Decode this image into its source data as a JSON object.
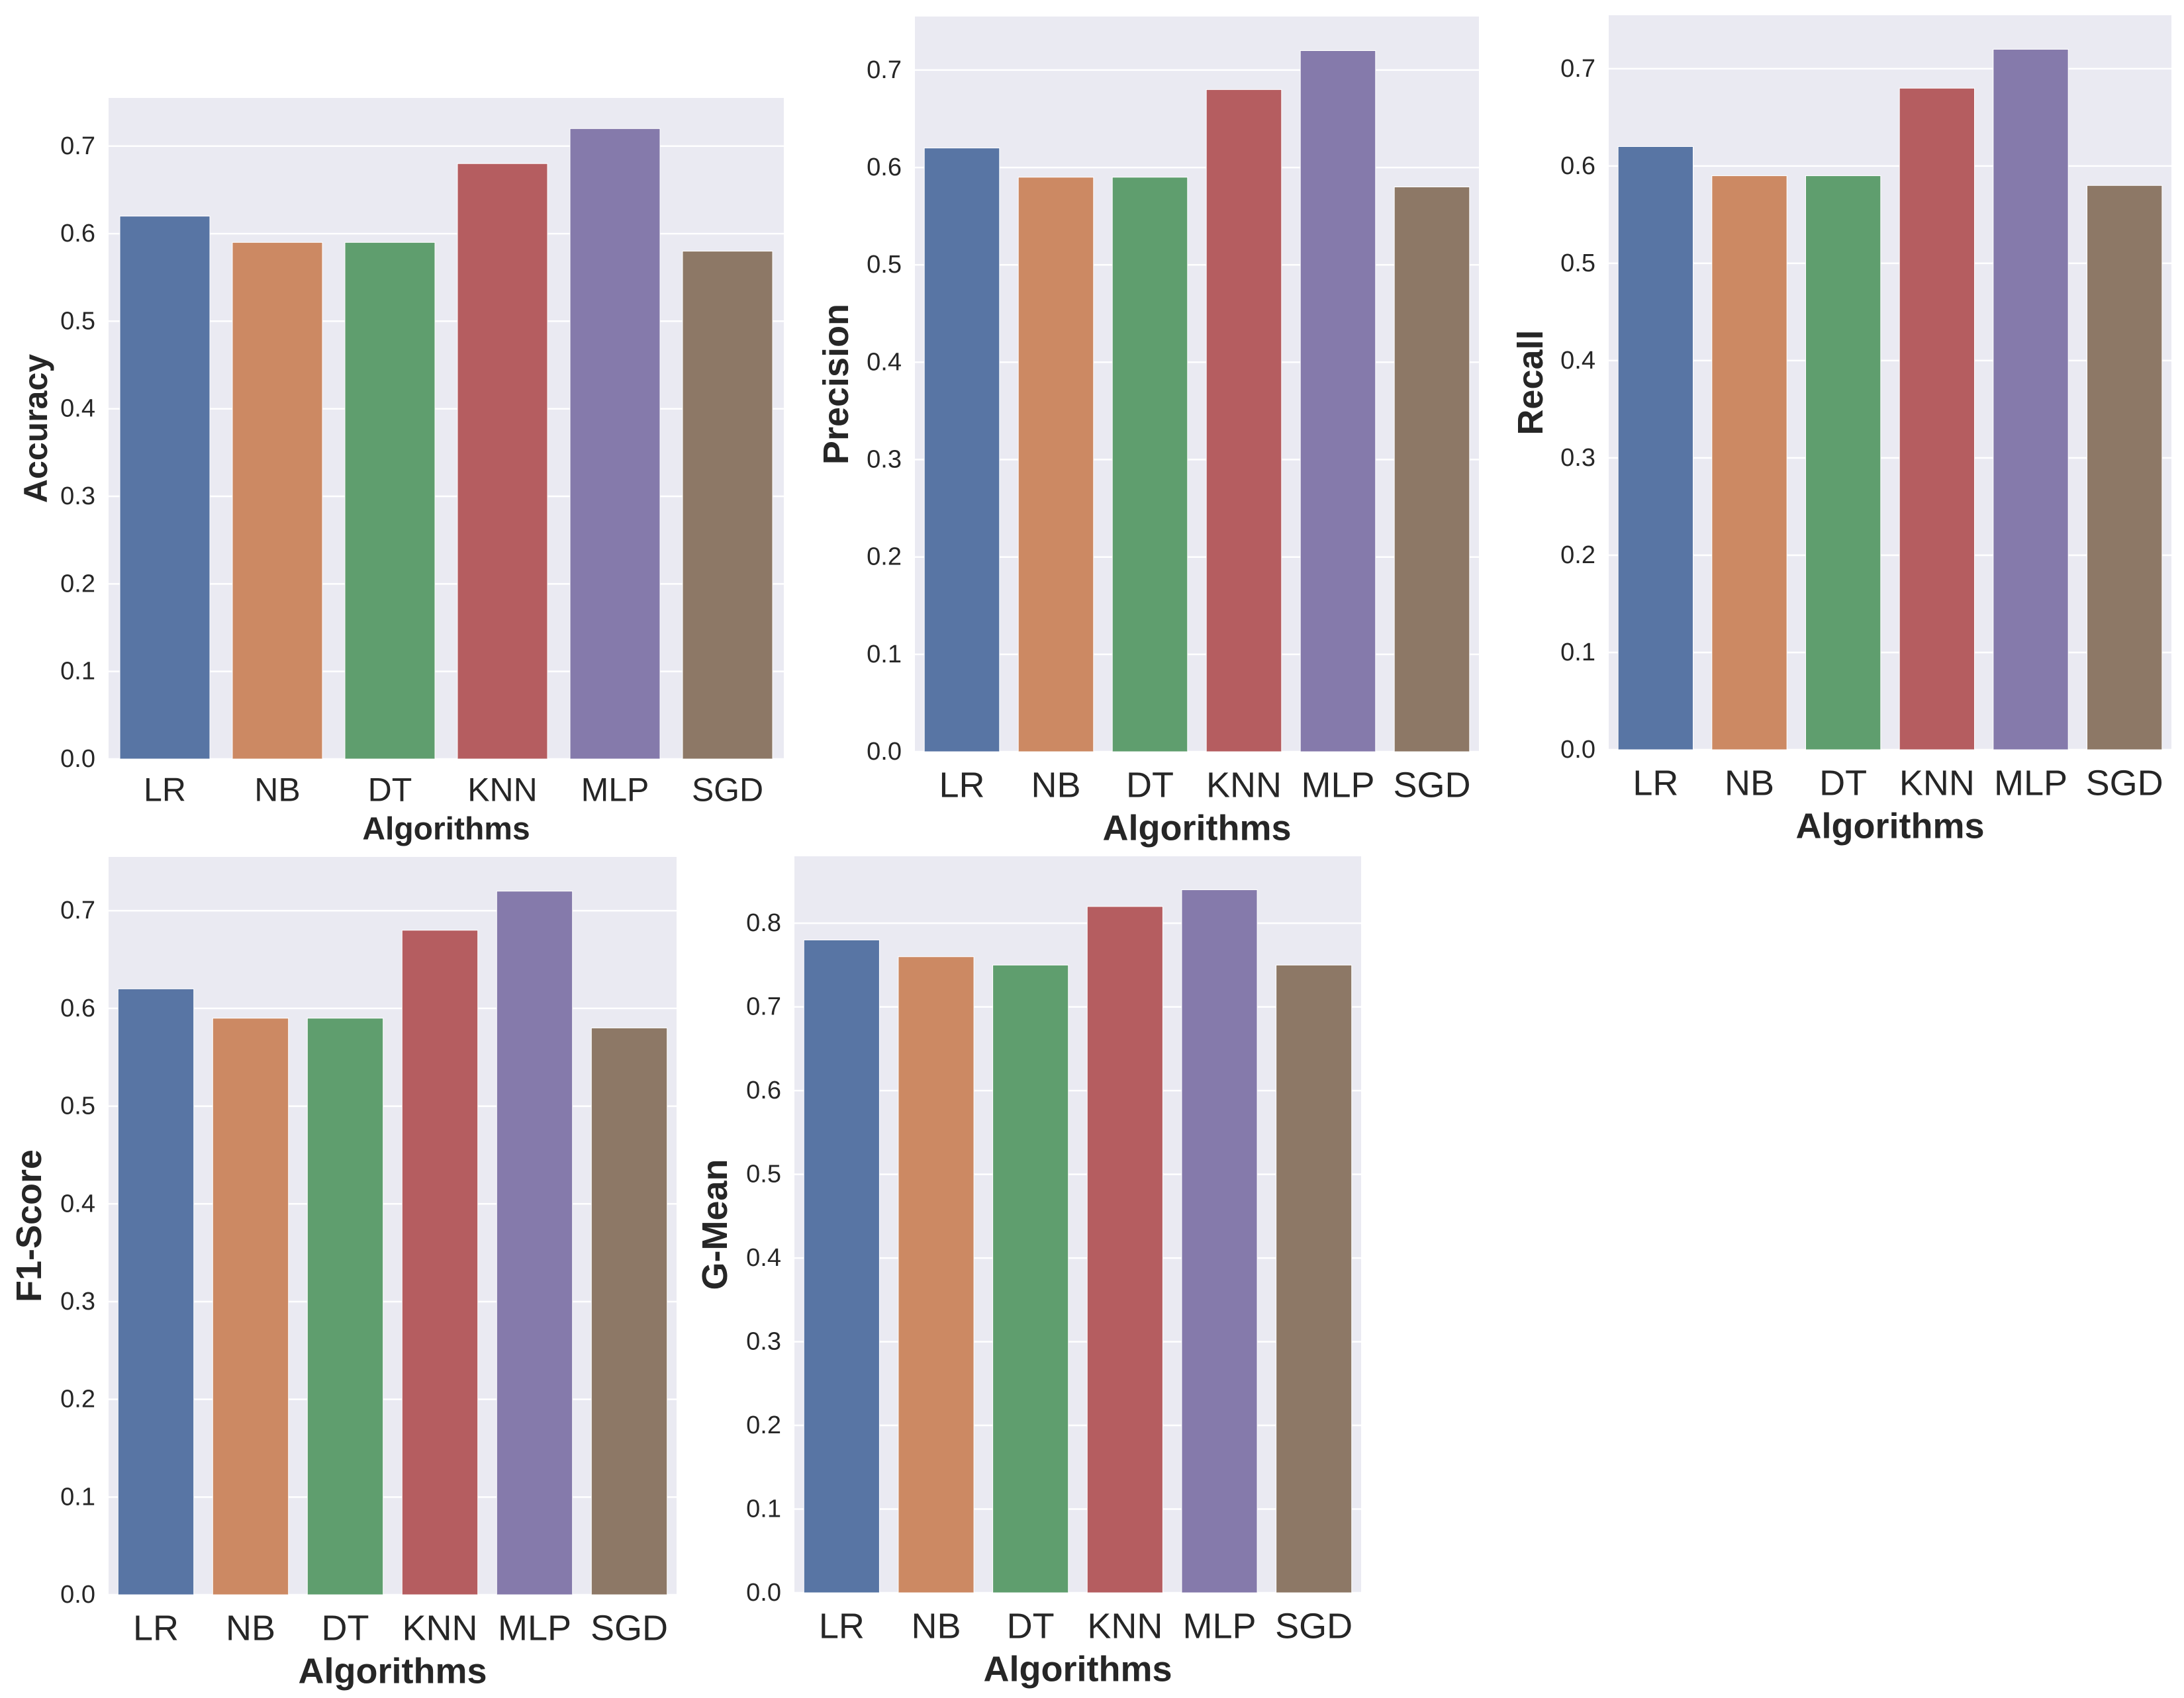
{
  "figure": {
    "colors": {
      "plot_background": "#EAEAF2",
      "grid": "#FFFFFF",
      "text": "#262626"
    }
  },
  "chart_data": [
    {
      "type": "bar",
      "id": "accuracy",
      "title": "",
      "xlabel": "Algorithms",
      "ylabel": "Accuracy",
      "categories": [
        "LR",
        "NB",
        "DT",
        "KNN",
        "MLP",
        "SGD"
      ],
      "values": [
        0.62,
        0.59,
        0.59,
        0.68,
        0.72,
        0.58
      ],
      "colors": [
        "#5875A4",
        "#CC8963",
        "#5F9E6E",
        "#B55D60",
        "#857AAB",
        "#8D7866"
      ],
      "ylim": [
        0,
        0.755
      ],
      "yticks": [
        0.0,
        0.1,
        0.2,
        0.3,
        0.4,
        0.5,
        0.6,
        0.7
      ],
      "ytick_labels": [
        "0.0",
        "0.1",
        "0.2",
        "0.3",
        "0.4",
        "0.5",
        "0.6",
        "0.7"
      ],
      "grid": true
    },
    {
      "type": "bar",
      "id": "precision",
      "title": "",
      "xlabel": "Algorithms",
      "ylabel": "Precision",
      "categories": [
        "LR",
        "NB",
        "DT",
        "KNN",
        "MLP",
        "SGD"
      ],
      "values": [
        0.62,
        0.59,
        0.59,
        0.68,
        0.72,
        0.58
      ],
      "colors": [
        "#5875A4",
        "#CC8963",
        "#5F9E6E",
        "#B55D60",
        "#857AAB",
        "#8D7866"
      ],
      "ylim": [
        0,
        0.755
      ],
      "yticks": [
        0.0,
        0.1,
        0.2,
        0.3,
        0.4,
        0.5,
        0.6,
        0.7
      ],
      "ytick_labels": [
        "0.0",
        "0.1",
        "0.2",
        "0.3",
        "0.4",
        "0.5",
        "0.6",
        "0.7"
      ],
      "grid": true
    },
    {
      "type": "bar",
      "id": "recall",
      "title": "",
      "xlabel": "Algorithms",
      "ylabel": "Recall",
      "categories": [
        "LR",
        "NB",
        "DT",
        "KNN",
        "MLP",
        "SGD"
      ],
      "values": [
        0.62,
        0.59,
        0.59,
        0.68,
        0.72,
        0.58
      ],
      "colors": [
        "#5875A4",
        "#CC8963",
        "#5F9E6E",
        "#B55D60",
        "#857AAB",
        "#8D7866"
      ],
      "ylim": [
        0,
        0.755
      ],
      "yticks": [
        0.0,
        0.1,
        0.2,
        0.3,
        0.4,
        0.5,
        0.6,
        0.7
      ],
      "ytick_labels": [
        "0.0",
        "0.1",
        "0.2",
        "0.3",
        "0.4",
        "0.5",
        "0.6",
        "0.7"
      ],
      "grid": true
    },
    {
      "type": "bar",
      "id": "f1-score",
      "title": "",
      "xlabel": "Algorithms",
      "ylabel": "F1-Score",
      "categories": [
        "LR",
        "NB",
        "DT",
        "KNN",
        "MLP",
        "SGD"
      ],
      "values": [
        0.62,
        0.59,
        0.59,
        0.68,
        0.72,
        0.58
      ],
      "colors": [
        "#5875A4",
        "#CC8963",
        "#5F9E6E",
        "#B55D60",
        "#857AAB",
        "#8D7866"
      ],
      "ylim": [
        0,
        0.755
      ],
      "yticks": [
        0.0,
        0.1,
        0.2,
        0.3,
        0.4,
        0.5,
        0.6,
        0.7
      ],
      "ytick_labels": [
        "0.0",
        "0.1",
        "0.2",
        "0.3",
        "0.4",
        "0.5",
        "0.6",
        "0.7"
      ],
      "grid": true
    },
    {
      "type": "bar",
      "id": "g-mean",
      "title": "",
      "xlabel": "Algorithms",
      "ylabel": "G-Mean",
      "categories": [
        "LR",
        "NB",
        "DT",
        "KNN",
        "MLP",
        "SGD"
      ],
      "values": [
        0.78,
        0.76,
        0.75,
        0.82,
        0.84,
        0.75
      ],
      "colors": [
        "#5875A4",
        "#CC8963",
        "#5F9E6E",
        "#B55D60",
        "#857AAB",
        "#8D7866"
      ],
      "ylim": [
        0,
        0.88
      ],
      "yticks": [
        0.0,
        0.1,
        0.2,
        0.3,
        0.4,
        0.5,
        0.6,
        0.7,
        0.8
      ],
      "ytick_labels": [
        "0.0",
        "0.1",
        "0.2",
        "0.3",
        "0.4",
        "0.5",
        "0.6",
        "0.7",
        "0.8"
      ],
      "grid": true
    }
  ]
}
